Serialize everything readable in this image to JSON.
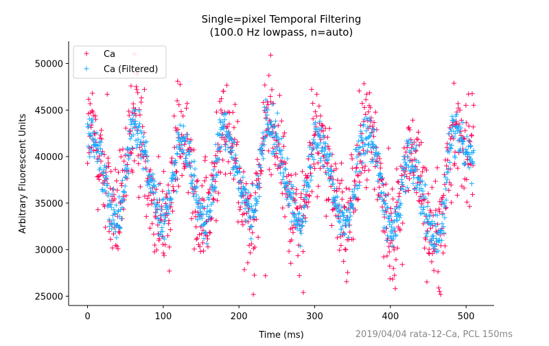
{
  "chart_data": {
    "type": "scatter",
    "title_line1": "Single=pixel Temporal Filtering",
    "title_line2": "(100.0 Hz lowpass, n=auto)",
    "xlabel": "Time (ms)",
    "ylabel": "Arbitrary Fluorescent Units",
    "xlim": [
      -25,
      537
    ],
    "ylim": [
      24000,
      52400
    ],
    "xticks": [
      0,
      100,
      200,
      300,
      400,
      500
    ],
    "yticks": [
      25000,
      30000,
      35000,
      40000,
      45000,
      50000
    ],
    "legend": {
      "placement": "upper-left",
      "entries": [
        "Ca",
        "Ca (Filtered)"
      ]
    },
    "watermark": "2019/04/04 rata-12-Ca, PCL 150ms",
    "sampling": {
      "x_start_ms": 0,
      "x_end_ms": 510,
      "n_points": 1040
    },
    "series": [
      {
        "name": "Ca",
        "marker": "+",
        "color": "#ff0055",
        "baseline": 37500,
        "peaks_ms": [
          3,
          62,
          123,
          180,
          238,
          302,
          370,
          425,
          484
        ],
        "peak_values": [
          42500,
          43500,
          41500,
          43000,
          44000,
          42000,
          42500,
          40000,
          42500
        ],
        "troughs_ms": [
          40,
          100,
          157,
          218,
          280,
          340,
          403,
          463
        ],
        "trough_values": [
          33500,
          33000,
          33000,
          33500,
          33000,
          33000,
          32000,
          31000
        ],
        "noise_sd": 3500,
        "highlight_points": [
          [
            242,
            50900
          ],
          [
            62,
            51000
          ],
          [
            119,
            48100
          ],
          [
            26,
            46700
          ],
          [
            285,
            25400
          ],
          [
            465,
            25500
          ],
          [
            235,
            27200
          ],
          [
            108,
            27700
          ]
        ]
      },
      {
        "name": "Ca (Filtered)",
        "marker": "+",
        "color": "#1aaaff",
        "baseline": 37500,
        "peaks_ms": [
          3,
          62,
          123,
          180,
          238,
          302,
          370,
          425,
          484
        ],
        "peak_values": [
          42500,
          43500,
          41500,
          43000,
          44000,
          42000,
          42500,
          40000,
          42500
        ],
        "troughs_ms": [
          40,
          100,
          157,
          218,
          280,
          340,
          403,
          463
        ],
        "trough_values": [
          33500,
          33000,
          33000,
          33500,
          33000,
          33000,
          32000,
          31000
        ],
        "noise_sd": 1200
      }
    ],
    "grid": false
  },
  "colors": {
    "raw": "#ff0055",
    "filtered": "#1aaaff",
    "axis": "#000000",
    "watermark": "#888888"
  }
}
